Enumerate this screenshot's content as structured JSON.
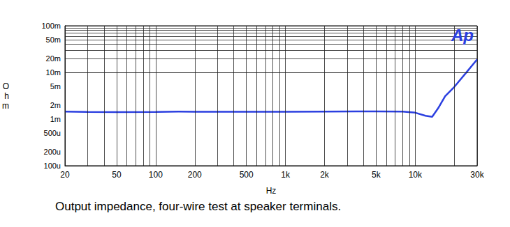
{
  "chart_data": {
    "type": "line",
    "title": "Output impedance, four-wire test at speaker terminals.",
    "xlabel": "Hz",
    "ylabel": "Ohm",
    "annotation": "Ap",
    "log": true,
    "grid": true,
    "xlim": [
      20,
      30000
    ],
    "ylim": [
      0.0001,
      0.1
    ],
    "xticks": [
      20,
      50,
      100,
      200,
      500,
      {
        "value": 1000,
        "label": "1k"
      },
      {
        "value": 2000,
        "label": "2k"
      },
      {
        "value": 5000,
        "label": "5k"
      },
      {
        "value": 10000,
        "label": "10k"
      },
      {
        "value": 30000,
        "label": "30k"
      }
    ],
    "yticks": [
      {
        "value": 0.0001,
        "label": "100u"
      },
      {
        "value": 0.0002,
        "label": "200u"
      },
      {
        "value": 0.0005,
        "label": "500u"
      },
      {
        "value": 0.001,
        "label": "1m"
      },
      {
        "value": 0.002,
        "label": "2m"
      },
      {
        "value": 0.005,
        "label": "5m"
      },
      {
        "value": 0.01,
        "label": "10m"
      },
      {
        "value": 0.02,
        "label": "20m"
      },
      {
        "value": 0.05,
        "label": "50m"
      },
      {
        "value": 0.1,
        "label": "100m"
      }
    ],
    "x": [
      20,
      30,
      50,
      100,
      150,
      200,
      500,
      1000,
      2000,
      5000,
      8000,
      10000,
      12000,
      13500,
      15000,
      17000,
      20000,
      25000,
      30000
    ],
    "values": [
      0.00145,
      0.00142,
      0.00141,
      0.00142,
      0.00145,
      0.00143,
      0.00144,
      0.00143,
      0.00145,
      0.00146,
      0.00145,
      0.00137,
      0.00118,
      0.00112,
      0.0017,
      0.0031,
      0.0049,
      0.0103,
      0.019
    ],
    "color": "#2b3fe0"
  }
}
